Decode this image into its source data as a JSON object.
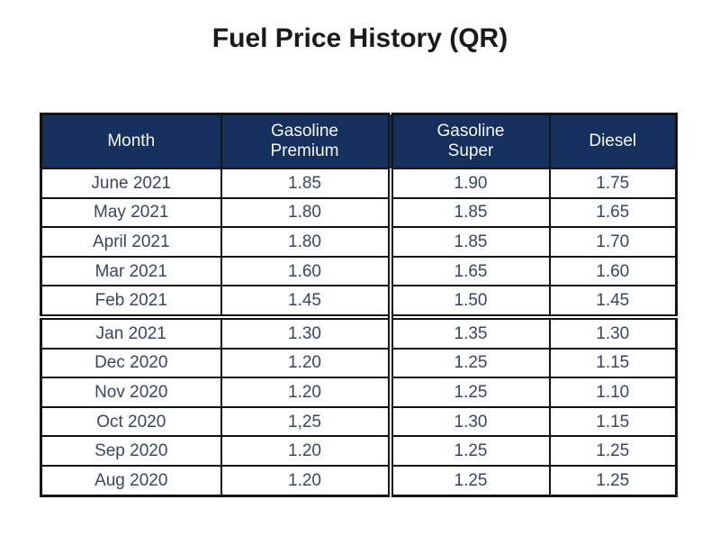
{
  "title": "Fuel Price History (QR)",
  "table": {
    "columns": [
      "Month",
      "Gasoline\nPremium",
      "Gasoline\nSuper",
      "Diesel"
    ],
    "rows": [
      {
        "month": "June 2021",
        "premium": "1.85",
        "super": "1.90",
        "diesel": "1.75"
      },
      {
        "month": "May 2021",
        "premium": "1.80",
        "super": "1.85",
        "diesel": "1.65"
      },
      {
        "month": "April 2021",
        "premium": "1.80",
        "super": "1.85",
        "diesel": "1.70"
      },
      {
        "month": "Mar 2021",
        "premium": "1.60",
        "super": "1.65",
        "diesel": "1.60"
      },
      {
        "month": "Feb 2021",
        "premium": "1.45",
        "super": "1.50",
        "diesel": "1.45"
      },
      {
        "month": "Jan 2021",
        "premium": "1.30",
        "super": "1.35",
        "diesel": "1.30"
      },
      {
        "month": "Dec 2020",
        "premium": "1.20",
        "super": "1.25",
        "diesel": "1.15"
      },
      {
        "month": "Nov 2020",
        "premium": "1.20",
        "super": "1.25",
        "diesel": "1.10"
      },
      {
        "month": "Oct 2020",
        "premium": "1,25",
        "super": "1.30",
        "diesel": "1.15"
      },
      {
        "month": "Sep 2020",
        "premium": "1.20",
        "super": "1.25",
        "diesel": "1.25"
      },
      {
        "month": "Aug 2020",
        "premium": "1.20",
        "super": "1.25",
        "diesel": "1.25"
      }
    ]
  },
  "colors": {
    "header_bg": "#16305e",
    "header_text": "#f4f6fa",
    "body_text": "#3a4660",
    "border": "#141414",
    "title_text": "#1a1a1a"
  }
}
